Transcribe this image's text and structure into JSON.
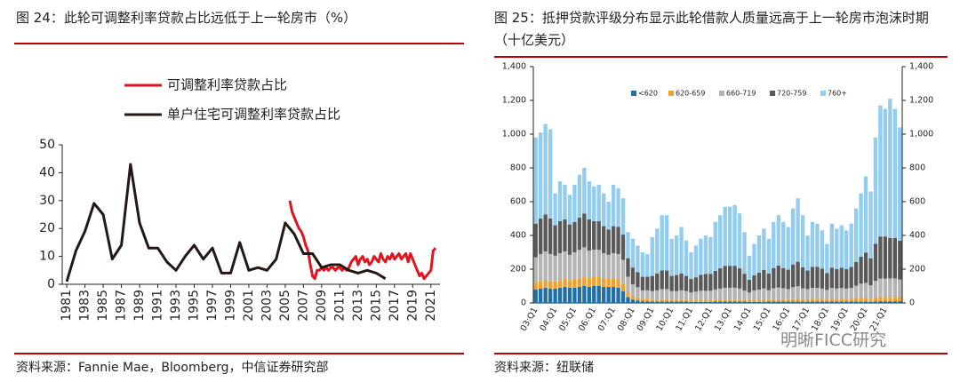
{
  "chart_data": [
    {
      "type": "line",
      "title": "图 24：此轮可调整利率贷款占比远低于上一轮房市（%）",
      "source": "资料来源：Fannie Mae，Bloomberg，中信证券研究部",
      "legend": "top",
      "xlim": [
        1980.5,
        2022
      ],
      "xticks": [
        1981,
        1983,
        1985,
        1987,
        1989,
        1991,
        1993,
        1995,
        1997,
        1999,
        2001,
        2003,
        2005,
        2007,
        2009,
        2011,
        2013,
        2015,
        2017,
        2019,
        2021
      ],
      "ylim": [
        0,
        50
      ],
      "yticks": [
        0,
        10,
        20,
        30,
        40,
        50
      ],
      "series": [
        {
          "name": "可调整利率贷款占比",
          "color": "#e0141e",
          "x": [
            2005.5,
            2005.75,
            2006,
            2006.25,
            2006.5,
            2006.75,
            2007,
            2007.25,
            2007.5,
            2007.75,
            2008,
            2008.25,
            2008.5,
            2008.75,
            2009,
            2009.25,
            2009.5,
            2009.75,
            2010,
            2010.25,
            2010.5,
            2010.75,
            2011,
            2011.25,
            2011.5,
            2011.75,
            2012,
            2012.25,
            2012.5,
            2012.75,
            2013,
            2013.25,
            2013.5,
            2013.75,
            2014,
            2014.25,
            2014.5,
            2014.75,
            2015,
            2015.25,
            2015.5,
            2015.75,
            2016,
            2016.25,
            2016.5,
            2016.75,
            2017,
            2017.25,
            2017.5,
            2017.75,
            2018,
            2018.25,
            2018.5,
            2018.75,
            2019,
            2019.25,
            2019.5,
            2019.75,
            2020,
            2020.25,
            2020.5,
            2020.75,
            2021,
            2021.25,
            2021.5
          ],
          "values": [
            30,
            26,
            24,
            22,
            20,
            19,
            17,
            14,
            12,
            7,
            3,
            2,
            5,
            5,
            6,
            5,
            6,
            5,
            6,
            6,
            5,
            6,
            6,
            5,
            6,
            5,
            6,
            8,
            9,
            10,
            7,
            9,
            10,
            8,
            9,
            7,
            8,
            10,
            9,
            8,
            11,
            9,
            8,
            10,
            9,
            11,
            9,
            10,
            11,
            9,
            10,
            11,
            8,
            11,
            9,
            7,
            5,
            3,
            4,
            2,
            3,
            4,
            5,
            12,
            13
          ]
        },
        {
          "name": "单户住宅可调整利率贷款占比",
          "color": "#231815",
          "x": [
            1981,
            1982,
            1983,
            1984,
            1985,
            1986,
            1987,
            1988,
            1989,
            1990,
            1991,
            1992,
            1993,
            1994,
            1995,
            1996,
            1997,
            1998,
            1999,
            2000,
            2001,
            2002,
            2003,
            2004,
            2005,
            2006,
            2007,
            2008,
            2009,
            2010,
            2011,
            2012,
            2013,
            2014,
            2015,
            2016
          ],
          "values": [
            1,
            12,
            19,
            29,
            25,
            9,
            14,
            43,
            22,
            13,
            13,
            8,
            5,
            10,
            14,
            9,
            13,
            4,
            4,
            15,
            5,
            6,
            5,
            9,
            22,
            18,
            11,
            11,
            6,
            7,
            7,
            5,
            4,
            5,
            4,
            2
          ]
        }
      ]
    },
    {
      "type": "bar",
      "stacked": true,
      "title": "图 25：抵押贷款评级分布显示此轮借款人质量远高于上一轮房市泡沫时期（十亿美元）",
      "source": "资料来源：纽联储",
      "watermark": "明晰FICC研究",
      "legend": "top-left",
      "categories": [
        "03:Q1",
        null,
        null,
        null,
        "04:Q1",
        null,
        null,
        null,
        "05:Q1",
        null,
        null,
        null,
        "06:Q1",
        null,
        null,
        null,
        "07:Q1",
        null,
        null,
        null,
        "08:Q1",
        null,
        null,
        null,
        "09:Q1",
        null,
        null,
        null,
        "10:Q1",
        null,
        null,
        null,
        "11:Q1",
        null,
        null,
        null,
        "12:Q1",
        null,
        null,
        null,
        "13:Q1",
        null,
        null,
        null,
        "14:Q1",
        null,
        null,
        null,
        "15:Q1",
        null,
        null,
        null,
        "16:Q1",
        null,
        null,
        null,
        "17:Q1",
        null,
        null,
        null,
        "18:Q1",
        null,
        null,
        null,
        "19:Q1",
        null,
        null,
        null,
        "20:Q1",
        null,
        null,
        null,
        "21:Q1",
        null,
        null,
        null
      ],
      "ylim": [
        0,
        1400
      ],
      "yticks": [
        0,
        200,
        400,
        600,
        800,
        {
          "value": 1000,
          "label": "1,000"
        },
        {
          "value": 1200,
          "label": "1,200"
        },
        {
          "value": 1400,
          "label": "1,400"
        }
      ],
      "y2lim": [
        0,
        1400
      ],
      "y2ticks": [
        0,
        200,
        400,
        600,
        800,
        {
          "value": 1000,
          "label": "1,000"
        },
        {
          "value": 1200,
          "label": "1,200"
        },
        {
          "value": 1400,
          "label": "1,400"
        }
      ],
      "series": [
        {
          "name": "<620",
          "color": "#1f6fa8",
          "values": [
            80,
            85,
            90,
            85,
            85,
            90,
            95,
            90,
            90,
            95,
            100,
            95,
            100,
            100,
            95,
            95,
            95,
            90,
            70,
            35,
            20,
            15,
            10,
            10,
            8,
            8,
            8,
            8,
            8,
            8,
            8,
            8,
            7,
            7,
            7,
            7,
            7,
            8,
            8,
            8,
            8,
            8,
            8,
            8,
            7,
            7,
            7,
            7,
            8,
            8,
            8,
            8,
            8,
            8,
            8,
            8,
            8,
            8,
            8,
            8,
            8,
            8,
            8,
            8,
            8,
            8,
            9,
            9,
            9,
            7,
            9,
            10,
            10,
            10,
            10,
            10
          ]
        },
        {
          "name": "620-659",
          "color": "#f0a22e",
          "values": [
            40,
            45,
            45,
            45,
            45,
            45,
            50,
            45,
            50,
            50,
            55,
            50,
            55,
            55,
            50,
            50,
            50,
            50,
            45,
            30,
            20,
            18,
            15,
            15,
            12,
            12,
            14,
            14,
            12,
            12,
            12,
            12,
            10,
            10,
            10,
            10,
            10,
            12,
            12,
            12,
            12,
            12,
            12,
            10,
            10,
            12,
            12,
            14,
            12,
            14,
            14,
            14,
            14,
            15,
            16,
            14,
            14,
            16,
            16,
            15,
            14,
            16,
            15,
            16,
            15,
            16,
            18,
            20,
            20,
            18,
            22,
            24,
            24,
            25,
            25,
            24
          ]
        },
        {
          "name": "660-719",
          "color": "#b4b4b4",
          "values": [
            150,
            160,
            170,
            160,
            150,
            160,
            160,
            150,
            160,
            170,
            175,
            165,
            160,
            160,
            150,
            140,
            150,
            150,
            140,
            90,
            70,
            60,
            50,
            50,
            50,
            55,
            60,
            60,
            50,
            50,
            55,
            50,
            45,
            50,
            55,
            55,
            55,
            60,
            65,
            70,
            70,
            70,
            65,
            55,
            45,
            55,
            60,
            65,
            55,
            65,
            70,
            65,
            60,
            70,
            75,
            65,
            60,
            65,
            65,
            62,
            55,
            65,
            62,
            64,
            62,
            65,
            75,
            85,
            90,
            80,
            100,
            110,
            110,
            110,
            110,
            105
          ]
        },
        {
          "name": "720-759",
          "color": "#595959",
          "values": [
            200,
            210,
            220,
            210,
            180,
            190,
            190,
            180,
            180,
            190,
            200,
            185,
            170,
            170,
            160,
            150,
            160,
            160,
            150,
            110,
            100,
            90,
            80,
            80,
            90,
            100,
            110,
            110,
            90,
            95,
            100,
            90,
            80,
            85,
            95,
            100,
            100,
            110,
            120,
            130,
            130,
            130,
            120,
            100,
            75,
            90,
            100,
            110,
            100,
            120,
            130,
            120,
            115,
            135,
            145,
            125,
            110,
            125,
            125,
            118,
            100,
            120,
            115,
            120,
            115,
            125,
            140,
            160,
            180,
            160,
            220,
            250,
            250,
            240,
            240,
            230
          ]
        },
        {
          "name": "760+",
          "color": "#92cdf0",
          "values": [
            510,
            510,
            535,
            530,
            190,
            235,
            205,
            175,
            220,
            255,
            270,
            225,
            205,
            215,
            195,
            165,
            245,
            230,
            215,
            155,
            170,
            157,
            145,
            135,
            230,
            265,
            328,
            328,
            220,
            235,
            275,
            210,
            158,
            188,
            213,
            228,
            218,
            290,
            315,
            350,
            350,
            360,
            325,
            247,
            143,
            186,
            221,
            244,
            205,
            273,
            298,
            273,
            253,
            332,
            376,
            308,
            208,
            266,
            256,
            227,
            173,
            261,
            240,
            252,
            230,
            256,
            318,
            376,
            451,
            395,
            629,
            776,
            756,
            825,
            765,
            671
          ]
        }
      ]
    }
  ]
}
